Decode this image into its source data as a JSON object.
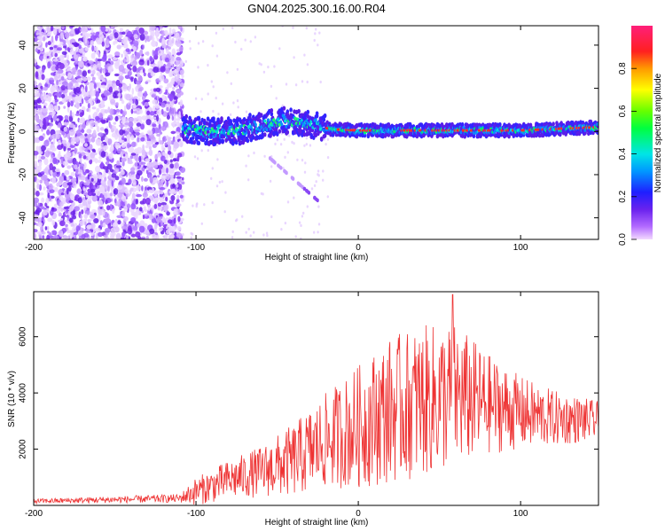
{
  "title": "GN04.2025.300.16.00.R04",
  "colors": {
    "snr_line": "#ee3333",
    "spectral_base": "#7b2cf0",
    "frame": "#000000"
  },
  "chart_data": [
    {
      "type": "heatmap",
      "title": "GN04.2025.300.16.00.R04",
      "xlabel": "Height of straight line (km)",
      "ylabel": "Frequency (Hz)",
      "xlim": [
        -200,
        148
      ],
      "ylim": [
        -50,
        49
      ],
      "xticks": [
        -200,
        -100,
        0,
        100
      ],
      "yticks": [
        -40,
        -20,
        0,
        20,
        40
      ],
      "noise_region_x": [
        -200,
        -108
      ],
      "signal_band_center_hz": [
        {
          "x": -105,
          "y": 1
        },
        {
          "x": -90,
          "y": 0
        },
        {
          "x": -75,
          "y": 0
        },
        {
          "x": -60,
          "y": 3
        },
        {
          "x": -45,
          "y": 5
        },
        {
          "x": -30,
          "y": 3
        },
        {
          "x": -15,
          "y": 1
        },
        {
          "x": 0,
          "y": 0.5
        },
        {
          "x": 50,
          "y": 0.5
        },
        {
          "x": 100,
          "y": 0.5
        },
        {
          "x": 148,
          "y": 2
        }
      ],
      "colorbar": {
        "label": "Normalized spectral amplitude",
        "range": [
          0.0,
          1.0
        ],
        "ticks": [
          0.0,
          0.2,
          0.4,
          0.6,
          0.8
        ]
      }
    },
    {
      "type": "line",
      "series": [
        {
          "name": "SNR"
        }
      ],
      "xlabel": "Height of straight line (km)",
      "ylabel": "SNR (10 * v/v)",
      "xlim": [
        -200,
        148
      ],
      "ylim": [
        0,
        7600
      ],
      "xticks": [
        -200,
        -100,
        0,
        100
      ],
      "yticks": [
        2000,
        4000,
        6000
      ],
      "envelope": [
        {
          "x": -200,
          "mean": 150,
          "amp": 80
        },
        {
          "x": -110,
          "mean": 250,
          "amp": 150
        },
        {
          "x": -100,
          "mean": 500,
          "amp": 500
        },
        {
          "x": -80,
          "mean": 900,
          "amp": 700
        },
        {
          "x": -60,
          "mean": 1200,
          "amp": 900
        },
        {
          "x": -40,
          "mean": 1600,
          "amp": 1300
        },
        {
          "x": -20,
          "mean": 2300,
          "amp": 1700
        },
        {
          "x": 0,
          "mean": 2800,
          "amp": 2200
        },
        {
          "x": 20,
          "mean": 3400,
          "amp": 2600
        },
        {
          "x": 40,
          "mean": 3700,
          "amp": 2700
        },
        {
          "x": 60,
          "mean": 3900,
          "amp": 2600
        },
        {
          "x": 80,
          "mean": 3600,
          "amp": 1800
        },
        {
          "x": 100,
          "mean": 3300,
          "amp": 1300
        },
        {
          "x": 120,
          "mean": 3100,
          "amp": 1000
        },
        {
          "x": 148,
          "mean": 3000,
          "amp": 700
        }
      ],
      "peak": {
        "x": 58,
        "y": 7500
      }
    }
  ]
}
